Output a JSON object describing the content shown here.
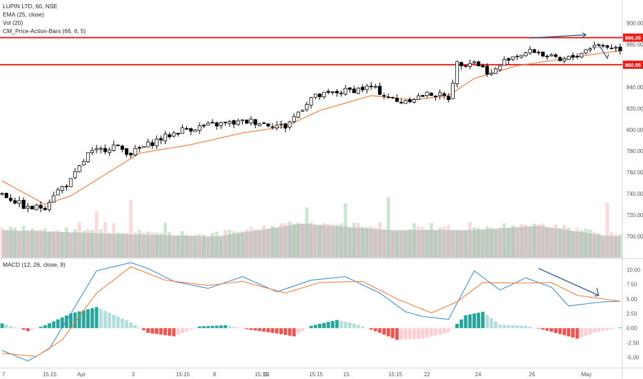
{
  "legend": {
    "title": "LUPIN LTD, 60, NSE",
    "ema": "EMA (25, close)",
    "vol": "Vol (20)",
    "cm": "CM_Price-Action-Bars (66, 6, 5)"
  },
  "macd_title": "MACD (12, 26, close, 9)",
  "colors": {
    "up_candle": "#ffffff",
    "down_candle": "#000000",
    "ema": "#f57c3a",
    "hline": "#e8201c",
    "arrow": "#1e4c8c",
    "macd": "#3a8fd6",
    "signal": "#f57c3a",
    "hist_up_strong": "#26a69a",
    "hist_up_weak": "#b2dfdb",
    "hist_down_strong": "#ef5350",
    "hist_down_weak": "#ffcdd2",
    "volume": "#b0b0b0"
  },
  "chart_data": [
    {
      "type": "candlestick",
      "ylim": [
        680,
        910
      ],
      "y_ticks": [
        "900.00",
        "880.00",
        "860.00",
        "840.00",
        "820.00",
        "800.00",
        "780.00",
        "760.00",
        "740.00",
        "720.00",
        "700.00"
      ],
      "x_ticks": [
        "7",
        "15:15",
        "Apr",
        "3",
        "15:15",
        "8",
        "15:15",
        "10",
        "15:15",
        "15",
        "15:15",
        "22",
        "24",
        "26",
        "May"
      ],
      "horizontal_lines": [
        {
          "value": 886.35,
          "label": "886.35"
        },
        {
          "value": 860.95,
          "label": "860.95"
        }
      ],
      "anchors": [
        [
          0,
          740
        ],
        [
          6,
          726
        ],
        [
          10,
          728
        ],
        [
          12,
          740
        ],
        [
          16,
          752
        ],
        [
          20,
          777
        ],
        [
          26,
          785
        ],
        [
          30,
          778
        ],
        [
          36,
          790
        ],
        [
          42,
          800
        ],
        [
          50,
          805
        ],
        [
          58,
          808
        ],
        [
          66,
          803
        ],
        [
          72,
          830
        ],
        [
          78,
          835
        ],
        [
          86,
          840
        ],
        [
          92,
          826
        ],
        [
          96,
          830
        ],
        [
          100,
          834
        ],
        [
          104,
          830
        ],
        [
          106,
          862
        ],
        [
          110,
          864
        ],
        [
          114,
          852
        ],
        [
          118,
          868
        ],
        [
          124,
          874
        ],
        [
          130,
          864
        ],
        [
          134,
          870
        ],
        [
          138,
          880
        ],
        [
          144,
          876
        ]
      ],
      "ema_anchors": [
        [
          0,
          752
        ],
        [
          10,
          730
        ],
        [
          16,
          738
        ],
        [
          24,
          758
        ],
        [
          32,
          778
        ],
        [
          44,
          786
        ],
        [
          56,
          797
        ],
        [
          66,
          803
        ],
        [
          74,
          818
        ],
        [
          86,
          832
        ],
        [
          96,
          828
        ],
        [
          104,
          832
        ],
        [
          110,
          848
        ],
        [
          120,
          860
        ],
        [
          130,
          866
        ],
        [
          140,
          872
        ],
        [
          144,
          874
        ]
      ],
      "volume_anchors": [
        [
          0,
          706
        ],
        [
          30,
          702
        ],
        [
          50,
          700
        ],
        [
          70,
          712
        ],
        [
          90,
          706
        ],
        [
          110,
          706
        ],
        [
          125,
          710
        ],
        [
          140,
          701
        ],
        [
          144,
          700
        ]
      ]
    },
    {
      "type": "macd",
      "ylim": [
        -6.8,
        11.8
      ],
      "y_ticks": [
        "10.00",
        "7.50",
        "5.00",
        "2.50",
        "0.00",
        "-2.50",
        "-5.00"
      ],
      "macd_anchors": [
        [
          0,
          -3.8
        ],
        [
          6,
          -5.6
        ],
        [
          11,
          -3.5
        ],
        [
          16,
          2.5
        ],
        [
          22,
          9.8
        ],
        [
          30,
          11.2
        ],
        [
          34,
          10.2
        ],
        [
          40,
          8.0
        ],
        [
          48,
          6.8
        ],
        [
          56,
          8.8
        ],
        [
          64,
          6.2
        ],
        [
          72,
          8.2
        ],
        [
          80,
          8.8
        ],
        [
          88,
          6.0
        ],
        [
          94,
          2.8
        ],
        [
          98,
          2.0
        ],
        [
          104,
          1.5
        ],
        [
          110,
          9.8
        ],
        [
          116,
          6.5
        ],
        [
          122,
          8.6
        ],
        [
          128,
          7.0
        ],
        [
          132,
          3.8
        ],
        [
          140,
          4.5
        ],
        [
          144,
          4.6
        ]
      ],
      "signal_anchors": [
        [
          0,
          -4.3
        ],
        [
          8,
          -4.8
        ],
        [
          14,
          -2.0
        ],
        [
          22,
          6.0
        ],
        [
          30,
          10.5
        ],
        [
          38,
          8.2
        ],
        [
          48,
          7.3
        ],
        [
          56,
          8.0
        ],
        [
          66,
          6.0
        ],
        [
          74,
          7.8
        ],
        [
          84,
          8.0
        ],
        [
          92,
          5.0
        ],
        [
          100,
          2.6
        ],
        [
          106,
          4.5
        ],
        [
          112,
          7.8
        ],
        [
          120,
          7.7
        ],
        [
          128,
          7.8
        ],
        [
          134,
          5.6
        ],
        [
          144,
          4.6
        ]
      ],
      "hist_anchors": [
        [
          0,
          0.8
        ],
        [
          6,
          -0.5
        ],
        [
          10,
          0.5
        ],
        [
          16,
          2.5
        ],
        [
          22,
          3.6
        ],
        [
          30,
          1.0
        ],
        [
          34,
          -0.8
        ],
        [
          40,
          -1.4
        ],
        [
          46,
          0.3
        ],
        [
          52,
          0.5
        ],
        [
          58,
          -0.3
        ],
        [
          64,
          -0.9
        ],
        [
          68,
          -1.4
        ],
        [
          72,
          0.4
        ],
        [
          78,
          1.4
        ],
        [
          82,
          0.8
        ],
        [
          88,
          -0.8
        ],
        [
          92,
          -2.0
        ],
        [
          98,
          -1.8
        ],
        [
          104,
          -0.7
        ],
        [
          108,
          2.2
        ],
        [
          112,
          2.8
        ],
        [
          116,
          0.6
        ],
        [
          122,
          0.4
        ],
        [
          128,
          -0.6
        ],
        [
          134,
          -1.8
        ],
        [
          138,
          -0.8
        ],
        [
          144,
          0.1
        ]
      ]
    }
  ]
}
